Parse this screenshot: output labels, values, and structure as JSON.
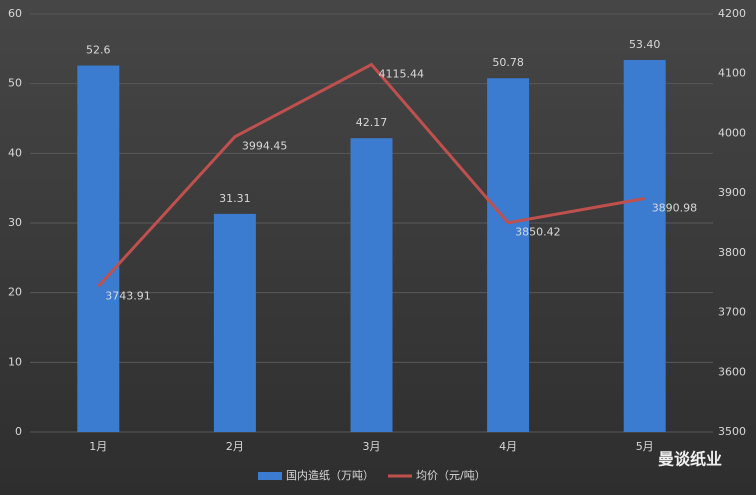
{
  "chart_data": {
    "type": "bar",
    "categories": [
      "1月",
      "2月",
      "3月",
      "4月",
      "5月"
    ],
    "series": [
      {
        "name": "国内造纸（万吨）",
        "color": "#3b7bd0",
        "values": [
          52.6,
          31.31,
          42.17,
          50.78,
          53.4
        ],
        "value_labels": [
          "52.6",
          "31.31",
          "42.17",
          "50.78",
          "53.40"
        ]
      },
      {
        "name": "均价（元/吨）",
        "type": "line",
        "axis": "y2",
        "color": "#c0504d",
        "values": [
          3743.91,
          3994.45,
          4115.44,
          3850.42,
          3890.98
        ]
      }
    ],
    "ylim": [
      0,
      60
    ],
    "yticks": [
      0,
      10,
      20,
      30,
      40,
      50,
      60
    ],
    "y2lim": [
      3500,
      4200
    ],
    "y2ticks": [
      3500,
      3600,
      3700,
      3800,
      3900,
      4000,
      4100,
      4200
    ],
    "grid": true,
    "legend": "bottom",
    "watermark": "曼谈纸业"
  }
}
